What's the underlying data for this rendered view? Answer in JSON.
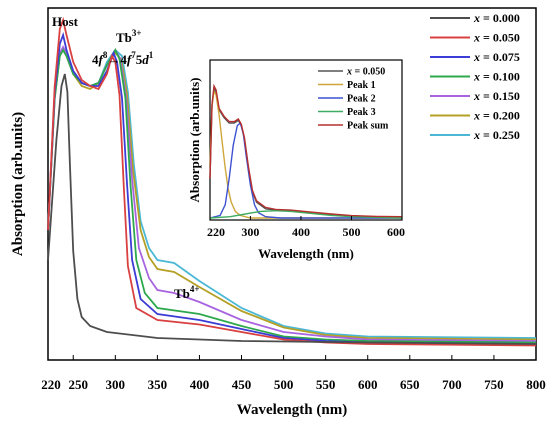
{
  "chart_data": [
    {
      "type": "line",
      "xlabel": "Wavelength (nm)",
      "ylabel": "Absorption (arb.units)",
      "xlim": [
        220,
        800
      ],
      "x_ticks": [
        "220",
        "250",
        "300",
        "350",
        "400",
        "450",
        "500",
        "550",
        "600",
        "650",
        "700",
        "750",
        "800"
      ],
      "legend_position": "top-right",
      "legend_prefix": "x = ",
      "annotations": {
        "host": "Host",
        "tb3": "Tb",
        "tb3_sup": "3+",
        "transition": [
          "4",
          "f",
          "8",
          "→4",
          "f",
          "7",
          "5",
          "d",
          "1"
        ],
        "tb4": "Tb",
        "tb4_sup": "4+"
      },
      "series": [
        {
          "name": "0.000",
          "color": "#4d4d4d",
          "points": [
            [
              220,
              0.3
            ],
            [
              230,
              0.7
            ],
            [
              236,
              0.88
            ],
            [
              240,
              0.92
            ],
            [
              243,
              0.86
            ],
            [
              246,
              0.62
            ],
            [
              250,
              0.33
            ],
            [
              255,
              0.17
            ],
            [
              260,
              0.11
            ],
            [
              270,
              0.08
            ],
            [
              290,
              0.06
            ],
            [
              350,
              0.04
            ],
            [
              450,
              0.03
            ],
            [
              600,
              0.025
            ],
            [
              800,
              0.02
            ]
          ]
        },
        {
          "name": "0.050",
          "color": "#d94040",
          "points": [
            [
              220,
              0.4
            ],
            [
              228,
              0.88
            ],
            [
              234,
              1.07
            ],
            [
              238,
              1.1
            ],
            [
              242,
              1.05
            ],
            [
              250,
              0.96
            ],
            [
              260,
              0.9
            ],
            [
              270,
              0.88
            ],
            [
              280,
              0.87
            ],
            [
              290,
              0.92
            ],
            [
              296,
              0.98
            ],
            [
              300,
              0.96
            ],
            [
              305,
              0.85
            ],
            [
              310,
              0.55
            ],
            [
              315,
              0.28
            ],
            [
              325,
              0.14
            ],
            [
              350,
              0.1
            ],
            [
              400,
              0.085
            ],
            [
              450,
              0.06
            ],
            [
              500,
              0.035
            ],
            [
              550,
              0.025
            ],
            [
              600,
              0.02
            ],
            [
              800,
              0.015
            ]
          ]
        },
        {
          "name": "0.075",
          "color": "#3c3cd6",
          "points": [
            [
              220,
              0.4
            ],
            [
              228,
              0.86
            ],
            [
              234,
              1.02
            ],
            [
              238,
              1.05
            ],
            [
              242,
              1.0
            ],
            [
              250,
              0.93
            ],
            [
              260,
              0.89
            ],
            [
              270,
              0.88
            ],
            [
              280,
              0.88
            ],
            [
              290,
              0.93
            ],
            [
              298,
              0.99
            ],
            [
              302,
              0.96
            ],
            [
              308,
              0.84
            ],
            [
              314,
              0.55
            ],
            [
              320,
              0.3
            ],
            [
              330,
              0.17
            ],
            [
              350,
              0.12
            ],
            [
              400,
              0.1
            ],
            [
              450,
              0.07
            ],
            [
              500,
              0.04
            ],
            [
              550,
              0.03
            ],
            [
              600,
              0.025
            ],
            [
              800,
              0.02
            ]
          ]
        },
        {
          "name": "0.100",
          "color": "#2ea84d",
          "points": [
            [
              220,
              0.4
            ],
            [
              228,
              0.84
            ],
            [
              234,
              0.98
            ],
            [
              238,
              1.0
            ],
            [
              242,
              0.98
            ],
            [
              250,
              0.92
            ],
            [
              260,
              0.89
            ],
            [
              270,
              0.88
            ],
            [
              280,
              0.89
            ],
            [
              290,
              0.95
            ],
            [
              300,
              1.0
            ],
            [
              305,
              0.97
            ],
            [
              312,
              0.84
            ],
            [
              318,
              0.55
            ],
            [
              325,
              0.3
            ],
            [
              335,
              0.19
            ],
            [
              350,
              0.14
            ],
            [
              400,
              0.12
            ],
            [
              450,
              0.08
            ],
            [
              500,
              0.045
            ],
            [
              550,
              0.035
            ],
            [
              600,
              0.03
            ],
            [
              800,
              0.025
            ]
          ]
        },
        {
          "name": "0.150",
          "color": "#a864e0",
          "points": [
            [
              220,
              0.4
            ],
            [
              228,
              0.85
            ],
            [
              234,
              0.99
            ],
            [
              238,
              1.01
            ],
            [
              242,
              0.99
            ],
            [
              250,
              0.93
            ],
            [
              260,
              0.89
            ],
            [
              270,
              0.88
            ],
            [
              280,
              0.89
            ],
            [
              290,
              0.95
            ],
            [
              300,
              1.0
            ],
            [
              306,
              0.97
            ],
            [
              313,
              0.84
            ],
            [
              320,
              0.57
            ],
            [
              328,
              0.34
            ],
            [
              340,
              0.24
            ],
            [
              350,
              0.2
            ],
            [
              370,
              0.19
            ],
            [
              400,
              0.16
            ],
            [
              450,
              0.1
            ],
            [
              500,
              0.06
            ],
            [
              550,
              0.045
            ],
            [
              600,
              0.035
            ],
            [
              800,
              0.03
            ]
          ]
        },
        {
          "name": "0.200",
          "color": "#b5a026",
          "points": [
            [
              220,
              0.4
            ],
            [
              228,
              0.84
            ],
            [
              234,
              0.98
            ],
            [
              238,
              1.0
            ],
            [
              242,
              0.98
            ],
            [
              250,
              0.92
            ],
            [
              260,
              0.88
            ],
            [
              270,
              0.87
            ],
            [
              280,
              0.89
            ],
            [
              290,
              0.95
            ],
            [
              300,
              0.99
            ],
            [
              307,
              0.97
            ],
            [
              314,
              0.85
            ],
            [
              321,
              0.6
            ],
            [
              330,
              0.4
            ],
            [
              340,
              0.31
            ],
            [
              350,
              0.27
            ],
            [
              370,
              0.26
            ],
            [
              400,
              0.21
            ],
            [
              450,
              0.13
            ],
            [
              500,
              0.075
            ],
            [
              550,
              0.05
            ],
            [
              600,
              0.04
            ],
            [
              800,
              0.035
            ]
          ]
        },
        {
          "name": "0.250",
          "color": "#4bb8d6",
          "points": [
            [
              220,
              0.4
            ],
            [
              228,
              0.84
            ],
            [
              234,
              0.98
            ],
            [
              238,
              1.0
            ],
            [
              242,
              0.99
            ],
            [
              250,
              0.93
            ],
            [
              260,
              0.89
            ],
            [
              270,
              0.88
            ],
            [
              280,
              0.89
            ],
            [
              290,
              0.96
            ],
            [
              300,
              1.0
            ],
            [
              308,
              0.98
            ],
            [
              315,
              0.86
            ],
            [
              322,
              0.62
            ],
            [
              330,
              0.43
            ],
            [
              340,
              0.34
            ],
            [
              350,
              0.3
            ],
            [
              370,
              0.29
            ],
            [
              400,
              0.23
            ],
            [
              450,
              0.14
            ],
            [
              500,
              0.08
            ],
            [
              550,
              0.055
            ],
            [
              600,
              0.045
            ],
            [
              800,
              0.04
            ]
          ]
        }
      ]
    },
    {
      "type": "line",
      "xlabel": "Wavelength (nm)",
      "ylabel": "Absorption (arb.units)",
      "xlim": [
        220,
        600
      ],
      "x_ticks": [
        "220",
        "300",
        "400",
        "500",
        "600"
      ],
      "series": [
        {
          "name": "0.050",
          "name_prefix": "x = ",
          "color": "#555555",
          "points": [
            [
              220,
              0.3
            ],
            [
              224,
              0.85
            ],
            [
              228,
              0.98
            ],
            [
              232,
              0.95
            ],
            [
              238,
              0.82
            ],
            [
              248,
              0.76
            ],
            [
              258,
              0.72
            ],
            [
              268,
              0.72
            ],
            [
              276,
              0.74
            ],
            [
              282,
              0.7
            ],
            [
              288,
              0.6
            ],
            [
              296,
              0.38
            ],
            [
              304,
              0.2
            ],
            [
              312,
              0.12
            ],
            [
              330,
              0.07
            ],
            [
              350,
              0.06
            ],
            [
              380,
              0.055
            ],
            [
              420,
              0.04
            ],
            [
              460,
              0.025
            ],
            [
              500,
              0.015
            ],
            [
              550,
              0.01
            ],
            [
              600,
              0.01
            ]
          ]
        },
        {
          "name": "Peak 1",
          "color": "#cfa63a",
          "points": [
            [
              220,
              0.4
            ],
            [
              224,
              0.85
            ],
            [
              228,
              0.96
            ],
            [
              232,
              0.93
            ],
            [
              238,
              0.78
            ],
            [
              244,
              0.58
            ],
            [
              250,
              0.38
            ],
            [
              256,
              0.22
            ],
            [
              262,
              0.12
            ],
            [
              270,
              0.05
            ],
            [
              280,
              0.02
            ],
            [
              300,
              0.0
            ],
            [
              600,
              0.0
            ]
          ]
        },
        {
          "name": "Peak 2",
          "color": "#3d52d1",
          "points": [
            [
              220,
              0.0
            ],
            [
              240,
              0.02
            ],
            [
              250,
              0.1
            ],
            [
              258,
              0.3
            ],
            [
              266,
              0.55
            ],
            [
              274,
              0.7
            ],
            [
              280,
              0.72
            ],
            [
              286,
              0.64
            ],
            [
              292,
              0.46
            ],
            [
              300,
              0.25
            ],
            [
              308,
              0.1
            ],
            [
              316,
              0.04
            ],
            [
              330,
              0.01
            ],
            [
              360,
              0.0
            ],
            [
              600,
              0.0
            ]
          ]
        },
        {
          "name": "Peak 3",
          "color": "#3fad61",
          "points": [
            [
              220,
              0.0
            ],
            [
              260,
              0.01
            ],
            [
              290,
              0.03
            ],
            [
              320,
              0.05
            ],
            [
              350,
              0.055
            ],
            [
              380,
              0.05
            ],
            [
              420,
              0.035
            ],
            [
              460,
              0.02
            ],
            [
              500,
              0.01
            ],
            [
              550,
              0.005
            ],
            [
              600,
              0.0
            ]
          ]
        },
        {
          "name": "Peak sum",
          "color": "#b5302e",
          "points": [
            [
              220,
              0.3
            ],
            [
              224,
              0.86
            ],
            [
              228,
              1.0
            ],
            [
              232,
              0.97
            ],
            [
              238,
              0.83
            ],
            [
              248,
              0.77
            ],
            [
              258,
              0.73
            ],
            [
              268,
              0.73
            ],
            [
              276,
              0.75
            ],
            [
              282,
              0.71
            ],
            [
              288,
              0.61
            ],
            [
              296,
              0.39
            ],
            [
              304,
              0.21
            ],
            [
              312,
              0.13
            ],
            [
              330,
              0.08
            ],
            [
              350,
              0.065
            ],
            [
              380,
              0.06
            ],
            [
              420,
              0.045
            ],
            [
              460,
              0.03
            ],
            [
              500,
              0.018
            ],
            [
              550,
              0.012
            ],
            [
              600,
              0.01
            ]
          ]
        }
      ]
    }
  ]
}
